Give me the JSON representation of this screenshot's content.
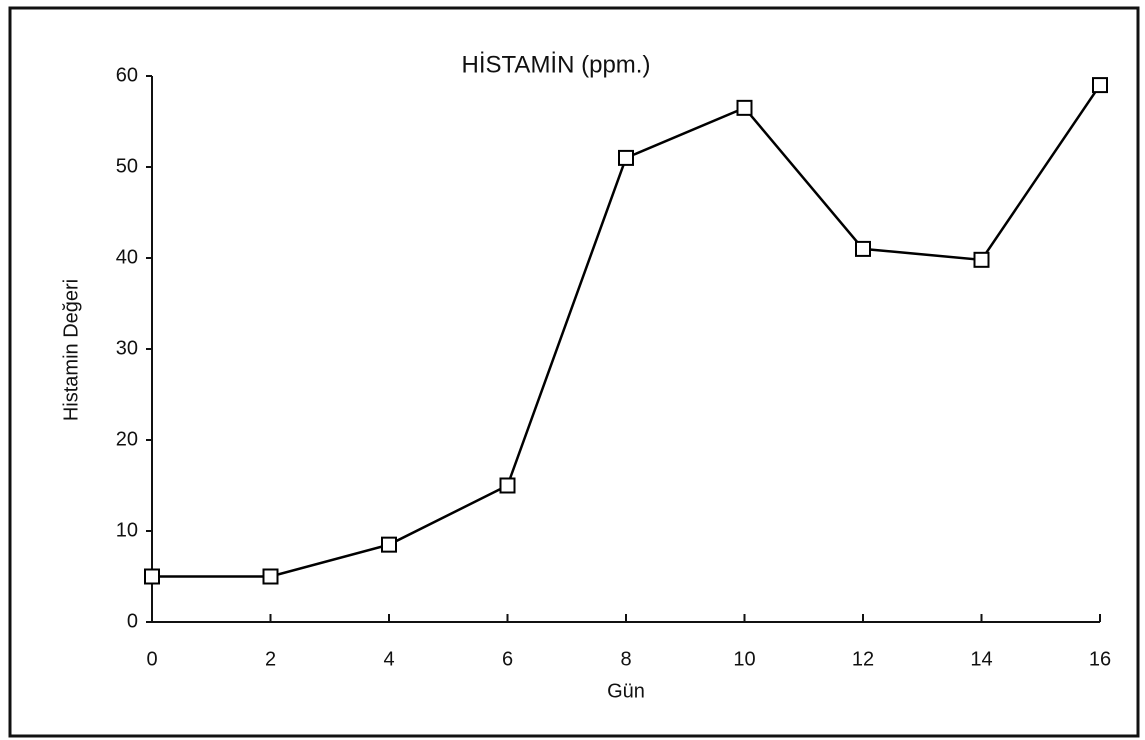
{
  "chart_data": {
    "type": "line",
    "title": "HİSTAMİN (ppm.)",
    "x_label": "Gün",
    "y_label": "Histamin Değeri",
    "x": [
      0,
      2,
      4,
      6,
      8,
      10,
      12,
      14,
      16
    ],
    "series": [
      {
        "color": "#000000",
        "values": [
          5,
          5,
          8.5,
          15,
          51,
          56.5,
          41,
          39.8,
          59
        ]
      }
    ],
    "xlim": [
      0,
      16
    ],
    "xticks": [
      0,
      2,
      4,
      6,
      8,
      10,
      12,
      14,
      16
    ],
    "ylim": [
      0,
      60
    ],
    "yticks": [
      0,
      10,
      20,
      30,
      40,
      50,
      60
    ]
  }
}
